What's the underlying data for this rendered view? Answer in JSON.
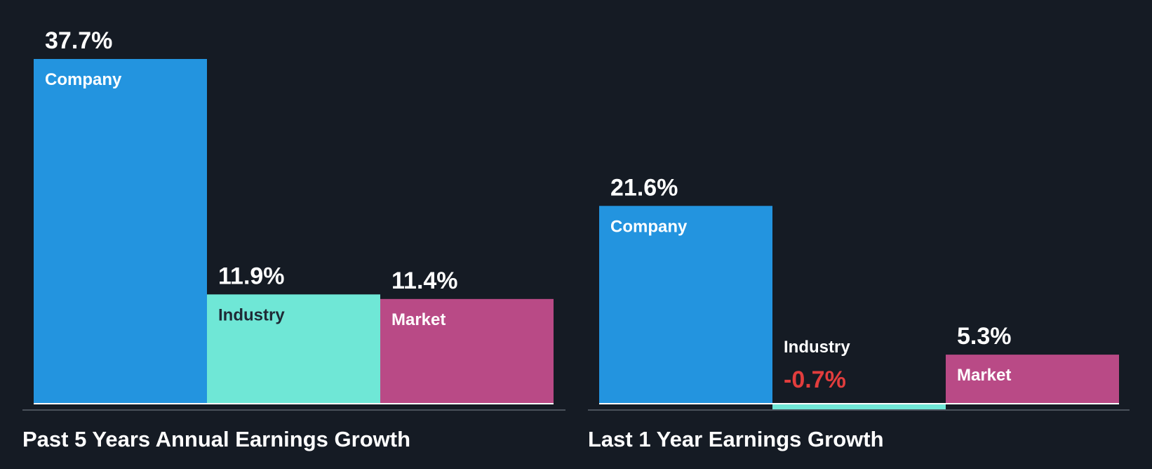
{
  "colors": {
    "background": "#151b24",
    "company": "#2394df",
    "industry": "#6fe7d6",
    "market": "#b94a86",
    "text_light": "#ffffff",
    "text_dark": "#1f2a36",
    "negative": "#e23d3d",
    "axis": "#4a515b"
  },
  "chart_data": [
    {
      "type": "bar",
      "title": "Past 5 Years Annual Earnings Growth",
      "categories": [
        "Company",
        "Industry",
        "Market"
      ],
      "values": [
        37.7,
        11.9,
        11.4
      ],
      "value_labels": [
        "37.7%",
        "11.9%",
        "11.4%"
      ],
      "xlabel": "",
      "ylabel": "",
      "ylim": [
        -0.7,
        37.7
      ]
    },
    {
      "type": "bar",
      "title": "Last 1 Year Earnings Growth",
      "categories": [
        "Company",
        "Industry",
        "Market"
      ],
      "values": [
        21.6,
        -0.7,
        5.3
      ],
      "value_labels": [
        "21.6%",
        "-0.7%",
        "5.3%"
      ],
      "xlabel": "",
      "ylabel": "",
      "ylim": [
        -0.7,
        37.7
      ]
    }
  ]
}
